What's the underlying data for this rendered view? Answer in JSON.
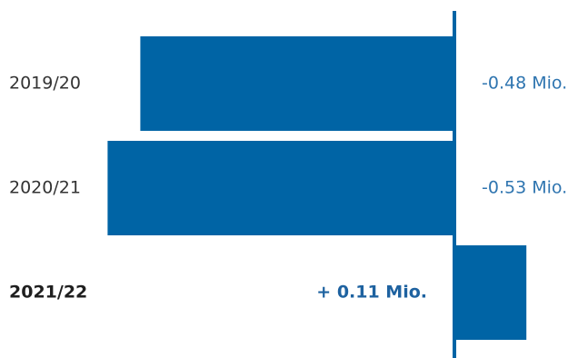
{
  "chart_data": {
    "type": "bar",
    "orientation": "horizontal",
    "categories": [
      "2019/20",
      "2020/21",
      "2021/22"
    ],
    "values": [
      -0.48,
      -0.53,
      0.11
    ],
    "value_labels": [
      "-0.48 Mio.",
      "-0.53 Mio.",
      "+ 0.11 Mio."
    ],
    "highlight": [
      false,
      false,
      true
    ],
    "bar_color": "#0064a5",
    "label_color": "#2f75b0",
    "category_label_color": "#333333",
    "axis_color": "#0064a5",
    "xlim": [
      -0.53,
      0.11
    ],
    "grid": false,
    "title": "",
    "xlabel": "",
    "ylabel": ""
  }
}
